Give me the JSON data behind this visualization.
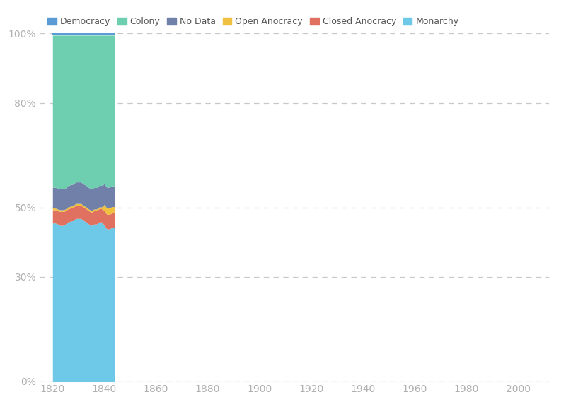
{
  "title": "",
  "xlabel": "",
  "ylabel": "",
  "xlim": [
    1815,
    2012
  ],
  "ylim": [
    0,
    1
  ],
  "xticks": [
    1820,
    1840,
    1860,
    1880,
    1900,
    1920,
    1940,
    1960,
    1980,
    2000
  ],
  "yticks": [
    0.0,
    0.3,
    0.5,
    0.8,
    1.0
  ],
  "ytick_labels": [
    "0%",
    "30%",
    "50%",
    "80%",
    "100%"
  ],
  "background_color": "#ffffff",
  "grid_color": "#c8c8c8",
  "legend_labels": [
    "Democracy",
    "Colony",
    "No Data",
    "Open Anocracy",
    "Closed Anocracy",
    "Monarchy"
  ],
  "legend_colors": [
    "#5b9bd5",
    "#6ecfb0",
    "#7080a8",
    "#f0c040",
    "#e07060",
    "#6ec8e8"
  ],
  "years": [
    1820,
    1821,
    1822,
    1823,
    1824,
    1825,
    1826,
    1827,
    1828,
    1829,
    1830,
    1831,
    1832,
    1833,
    1834,
    1835,
    1836,
    1837,
    1838,
    1839,
    1840,
    1841,
    1842,
    1843,
    1844
  ],
  "monarchy": [
    0.455,
    0.455,
    0.452,
    0.448,
    0.448,
    0.452,
    0.458,
    0.46,
    0.462,
    0.468,
    0.468,
    0.468,
    0.462,
    0.458,
    0.452,
    0.448,
    0.452,
    0.452,
    0.458,
    0.458,
    0.448,
    0.438,
    0.438,
    0.442,
    0.442
  ],
  "closed_anocracy": [
    0.038,
    0.038,
    0.038,
    0.04,
    0.04,
    0.038,
    0.038,
    0.038,
    0.038,
    0.038,
    0.038,
    0.038,
    0.038,
    0.038,
    0.038,
    0.038,
    0.038,
    0.038,
    0.038,
    0.038,
    0.042,
    0.042,
    0.042,
    0.042,
    0.042
  ],
  "open_anocracy": [
    0.005,
    0.005,
    0.005,
    0.005,
    0.005,
    0.005,
    0.005,
    0.005,
    0.005,
    0.005,
    0.005,
    0.005,
    0.005,
    0.005,
    0.005,
    0.005,
    0.005,
    0.005,
    0.005,
    0.005,
    0.018,
    0.018,
    0.018,
    0.018,
    0.018
  ],
  "no_data": [
    0.06,
    0.06,
    0.06,
    0.06,
    0.06,
    0.06,
    0.062,
    0.062,
    0.062,
    0.062,
    0.062,
    0.062,
    0.062,
    0.062,
    0.062,
    0.062,
    0.062,
    0.062,
    0.062,
    0.062,
    0.06,
    0.06,
    0.06,
    0.06,
    0.06
  ],
  "colony": [
    0.437,
    0.437,
    0.44,
    0.442,
    0.442,
    0.44,
    0.432,
    0.43,
    0.428,
    0.422,
    0.422,
    0.422,
    0.428,
    0.432,
    0.438,
    0.442,
    0.438,
    0.438,
    0.432,
    0.432,
    0.427,
    0.437,
    0.437,
    0.433,
    0.433
  ],
  "democracy": [
    0.005,
    0.005,
    0.005,
    0.005,
    0.005,
    0.005,
    0.005,
    0.005,
    0.005,
    0.005,
    0.005,
    0.005,
    0.005,
    0.005,
    0.005,
    0.005,
    0.005,
    0.005,
    0.005,
    0.005,
    0.005,
    0.005,
    0.005,
    0.005,
    0.005
  ]
}
